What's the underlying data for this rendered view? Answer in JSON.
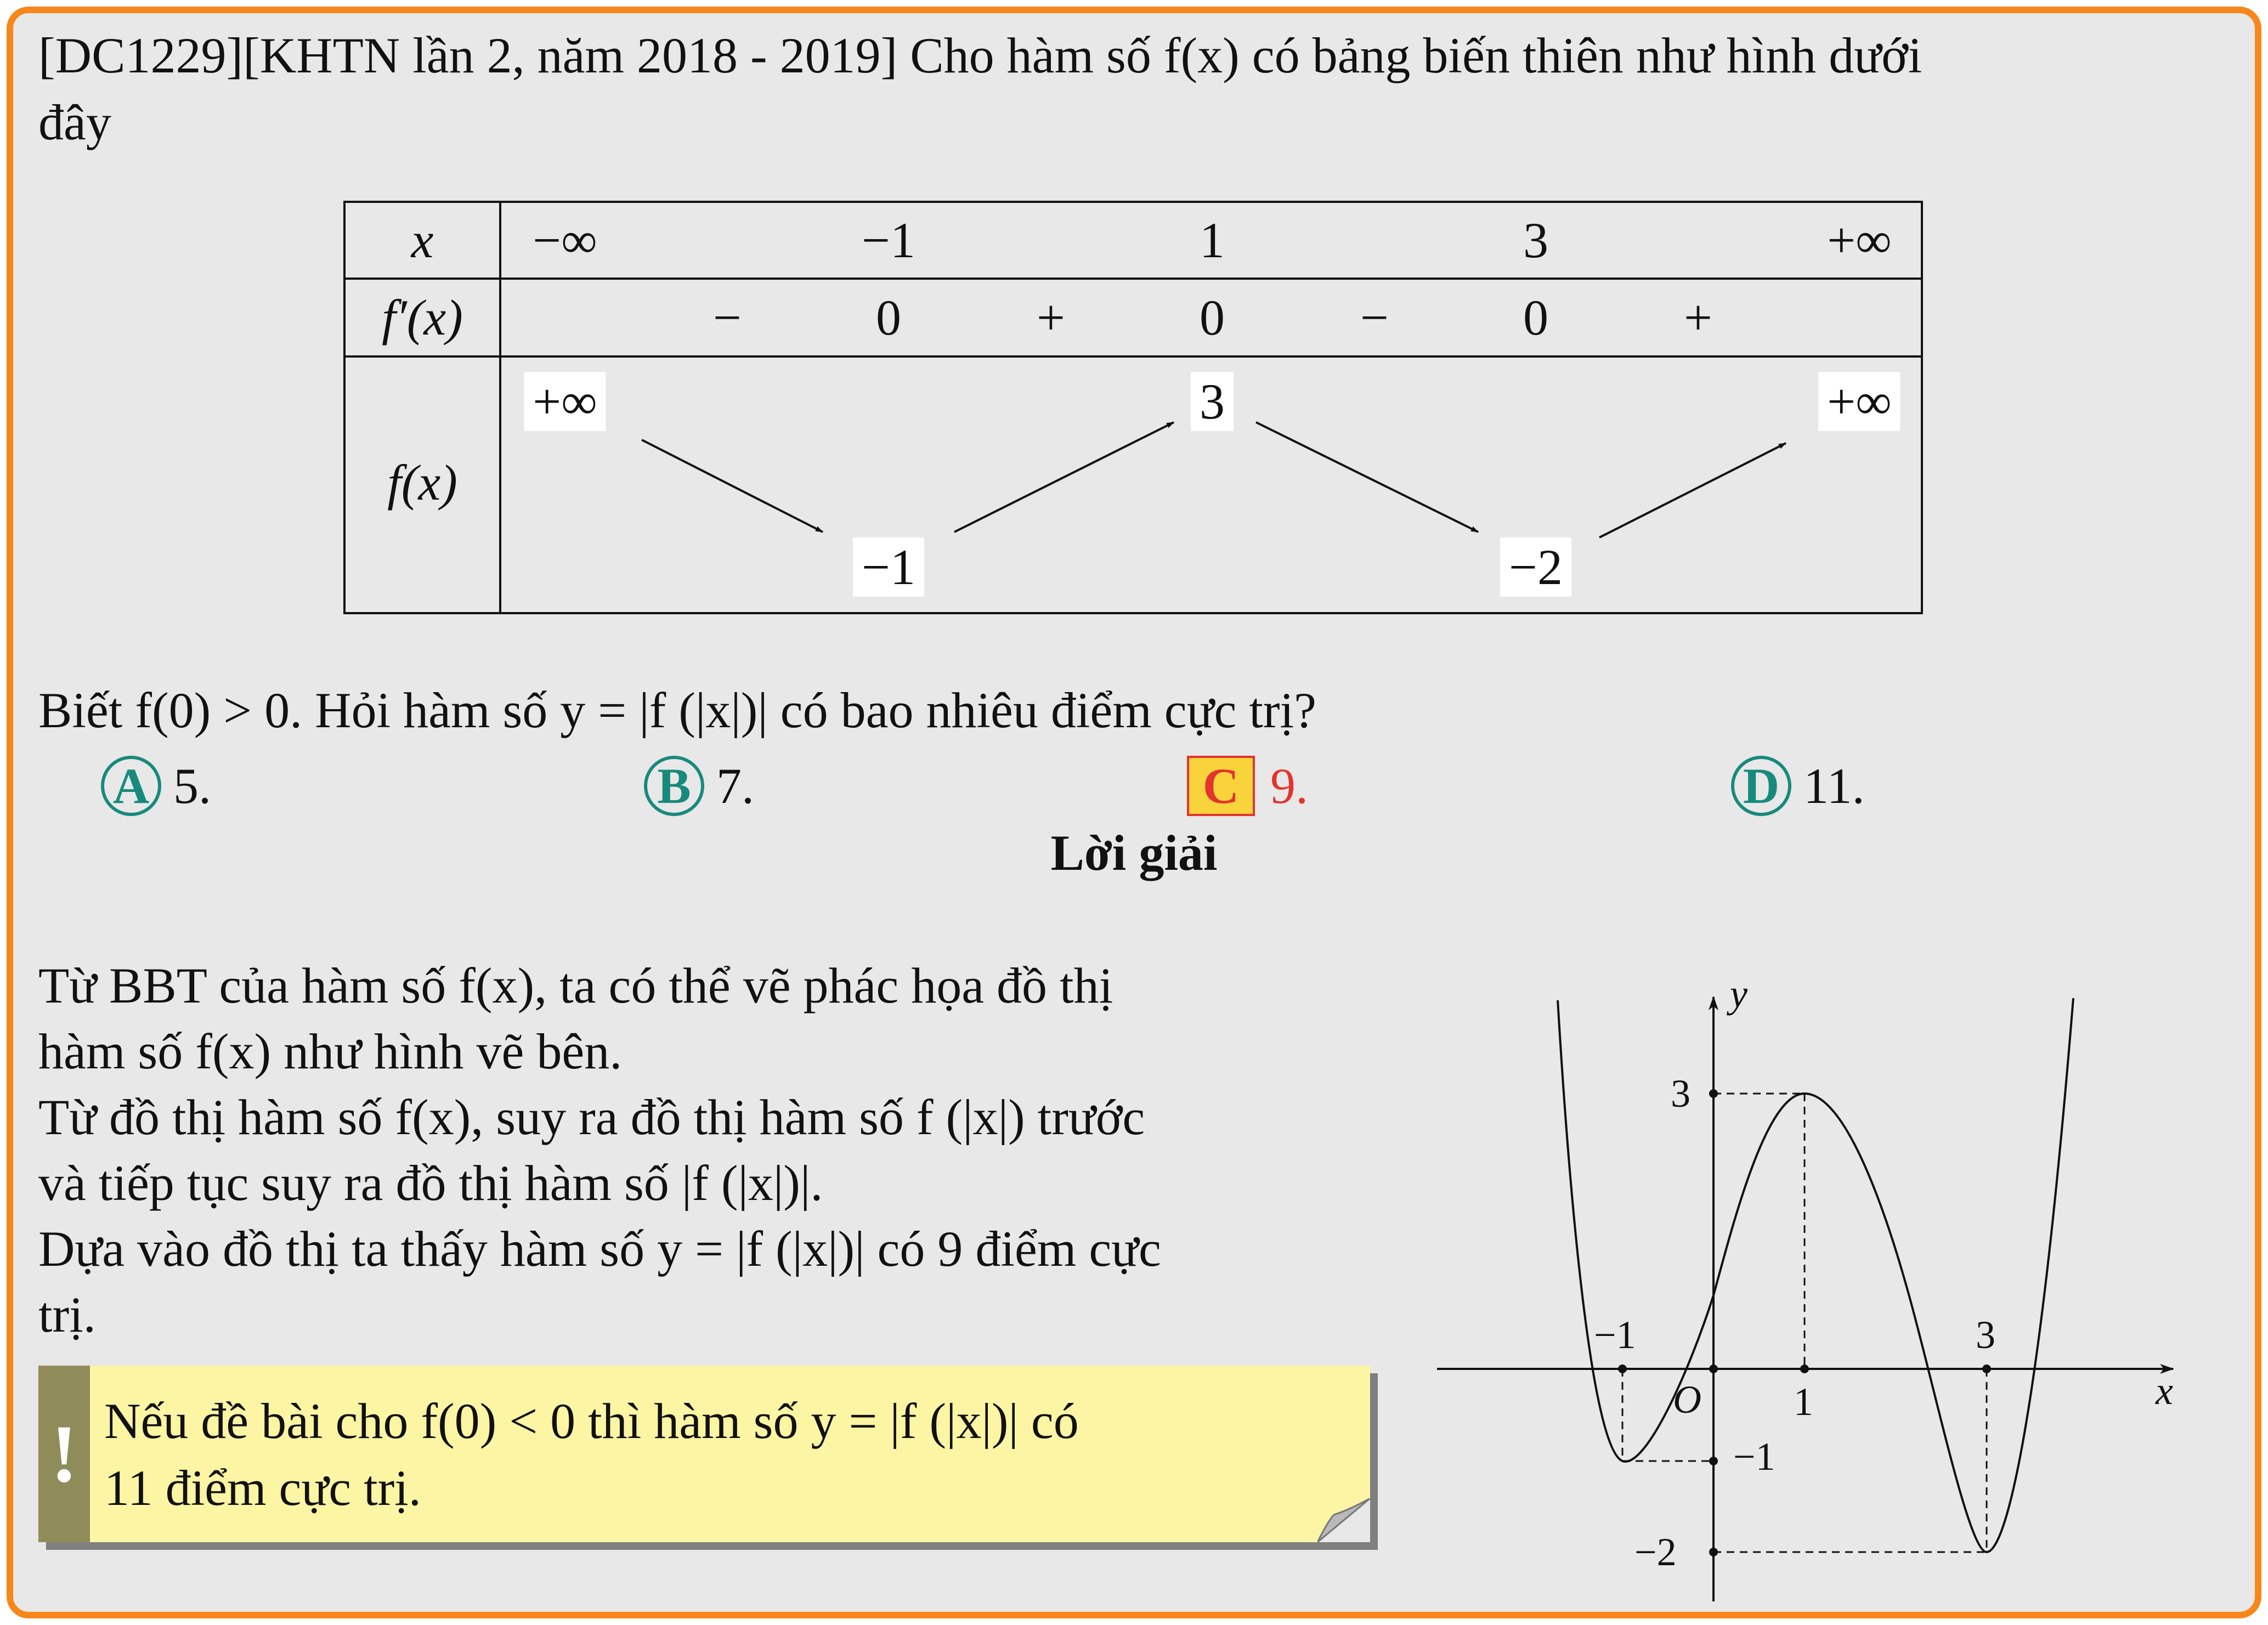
{
  "problem": {
    "line1": "[DC1229][KHTN lần 2, năm 2018 - 2019] Cho hàm số f(x) có bảng biến thiên như hình dưới",
    "line2": "đây"
  },
  "table": {
    "row_labels": [
      "x",
      "f′(x)",
      "f(x)"
    ],
    "x_values": [
      "−∞",
      "−1",
      "1",
      "3",
      "+∞"
    ],
    "derivative": [
      "−",
      "0",
      "+",
      "0",
      "−",
      "0",
      "+"
    ],
    "f_values": {
      "start": "+∞",
      "min1": "−1",
      "max": "3",
      "min2": "−2",
      "end": "+∞"
    }
  },
  "question": "Biết f(0) > 0. Hỏi hàm số y = |f (|x|)| có bao nhiêu điểm cực trị?",
  "options": [
    {
      "letter": "A",
      "text": "5."
    },
    {
      "letter": "B",
      "text": "7."
    },
    {
      "letter": "C",
      "text": "9.",
      "correct": true
    },
    {
      "letter": "D",
      "text": "11."
    }
  ],
  "solution": {
    "heading": "Lời giải",
    "lines": [
      "Từ BBT của hàm số f(x), ta có thể vẽ phác họa đồ thị",
      "hàm số f(x) như hình vẽ bên.",
      "Từ đồ thị hàm số f(x), suy ra đồ thị hàm số f (|x|) trước",
      "và tiếp tục suy ra đồ thị hàm số |f (|x|)|.",
      "Dựa vào đồ thị ta thấy hàm số y = |f (|x|)| có 9 điểm cực",
      "trị."
    ]
  },
  "note": {
    "icon": "!",
    "line1": "Nếu đề bài cho f(0) < 0 thì hàm số y = |f (|x|)| có",
    "line2": "11 điểm cực trị."
  },
  "graph": {
    "axis_x": "x",
    "axis_y": "y",
    "origin": "O",
    "labels": {
      "x_neg1": "−1",
      "x_1": "1",
      "x_3": "3",
      "y_3": "3",
      "y_neg1": "−1",
      "y_neg2": "−2"
    }
  },
  "colors": {
    "frame": "#f7871b",
    "background": "#e8e8e8",
    "option_circle": "#178a7d",
    "answer_red": "#e3342f",
    "answer_fill": "#f9d33b",
    "note_bg": "#fbf5a4",
    "note_bar": "#8f8c5a"
  }
}
